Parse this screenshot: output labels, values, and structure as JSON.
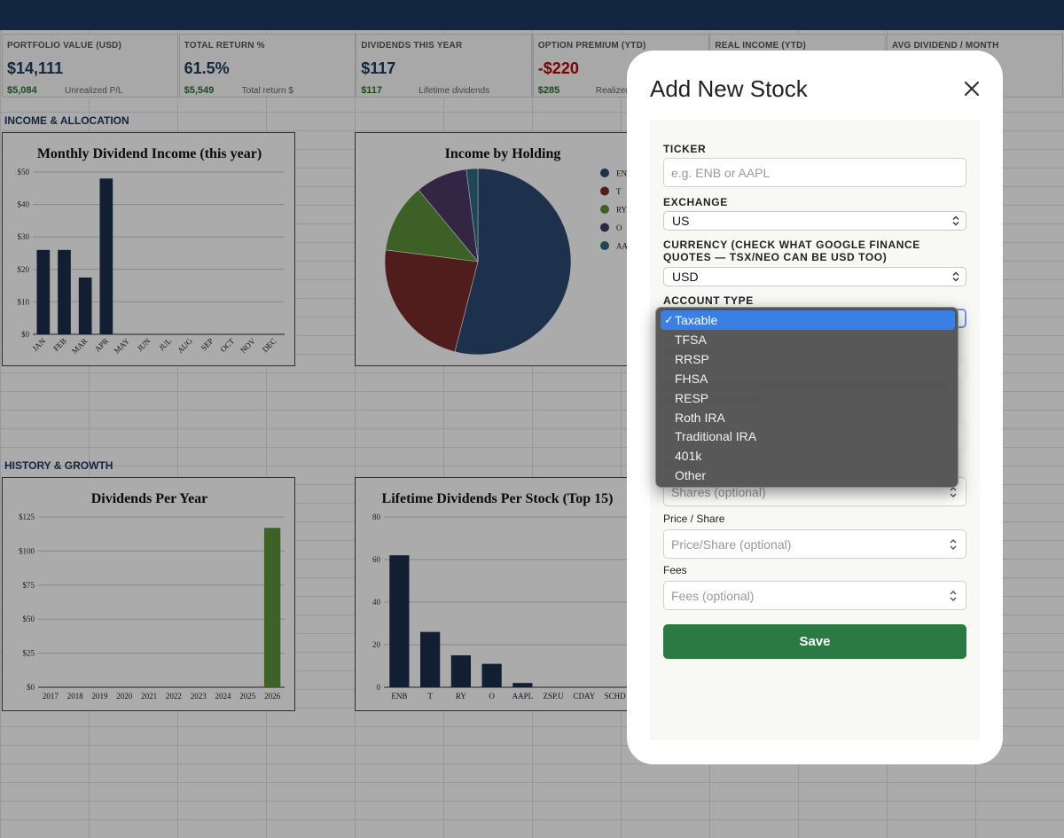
{
  "kpis": [
    {
      "label": "PORTFOLIO VALUE (USD)",
      "value": "$14,111",
      "sub": "$5,084",
      "subdesc": "Unrealized P/L",
      "negative": false
    },
    {
      "label": "TOTAL RETURN %",
      "value": "61.5%",
      "sub": "$5,549",
      "subdesc": "Total return $",
      "negative": false
    },
    {
      "label": "DIVIDENDS THIS YEAR",
      "value": "$117",
      "sub": "$117",
      "subdesc": "Lifetime dividends",
      "negative": false
    },
    {
      "label": "OPTION PREMIUM (YTD)",
      "value": "-$220",
      "sub": "$285",
      "subdesc": "Realized",
      "negative": true
    },
    {
      "label": "REAL INCOME (YTD)",
      "value": "",
      "sub": "",
      "subdesc": "",
      "negative": false
    },
    {
      "label": "AVG DIVIDEND / MONTH",
      "value": "",
      "sub": "",
      "subdesc": "",
      "negative": false
    }
  ],
  "sections": {
    "income": "INCOME & ALLOCATION",
    "history": "HISTORY & GROWTH"
  },
  "chart_data": [
    {
      "type": "bar",
      "title": "Monthly Dividend Income (this year)",
      "categories": [
        "JAN",
        "FEB",
        "MAR",
        "APR",
        "MAY",
        "JUN",
        "JUL",
        "AUG",
        "SEP",
        "OCT",
        "NOV",
        "DEC"
      ],
      "values": [
        26,
        26,
        17.5,
        48,
        0,
        0,
        0,
        0,
        0,
        0,
        0,
        0
      ],
      "ylim": [
        0,
        50
      ],
      "yticks": [
        "$0",
        "$10",
        "$20",
        "$30",
        "$40",
        "$50"
      ],
      "color": "#1c2e4a"
    },
    {
      "type": "pie",
      "title": "Income by Holding",
      "labels": [
        "ENB",
        "T",
        "RY",
        "O",
        "AAPL"
      ],
      "legend_labels": [
        "EN",
        "T",
        "RY",
        "O",
        "AA"
      ],
      "values": [
        54,
        23,
        12,
        9,
        2
      ],
      "colors": [
        "#2c4a74",
        "#7a2a2a",
        "#5a8f3a",
        "#4d3a66",
        "#2b6b80"
      ],
      "legend": "right"
    },
    {
      "type": "bar",
      "title": "Dividends Per Year",
      "categories": [
        "2017",
        "2018",
        "2019",
        "2020",
        "2021",
        "2022",
        "2023",
        "2024",
        "2025",
        "2026"
      ],
      "values": [
        0,
        0,
        0,
        0,
        0,
        0,
        0,
        0,
        0,
        117
      ],
      "ylim": [
        0,
        125
      ],
      "yticks": [
        "$0",
        "$25",
        "$50",
        "$75",
        "$100",
        "$125"
      ],
      "color": "#5c913b"
    },
    {
      "type": "bar",
      "title": "Lifetime Dividends Per Stock (Top 15)",
      "categories": [
        "ENB",
        "T",
        "RY",
        "O",
        "AAPL",
        "ZSP.U",
        "CDAY",
        "SCHD"
      ],
      "values": [
        62,
        26,
        15,
        11,
        2,
        0,
        0,
        0
      ],
      "ylim": [
        0,
        80
      ],
      "yticks": [
        "0",
        "20",
        "40",
        "60",
        "80"
      ],
      "color": "#1c2e4a"
    }
  ],
  "modal": {
    "title": "Add New Stock",
    "ticker_label": "TICKER",
    "ticker_placeholder": "e.g. ENB or AAPL",
    "exchange_label": "EXCHANGE",
    "exchange_value": "US",
    "currency_label": "CURRENCY (CHECK WHAT GOOGLE FINANCE QUOTES — TSX/NEO CAN BE USD TOO)",
    "currency_value": "USD",
    "account_label": "ACCOUNT TYPE",
    "price_label": "Price / Share",
    "price_placeholder": "Price/Share (optional)",
    "fees_label": "Fees",
    "fees_placeholder": "Fees (optional)",
    "shares_placeholder": "Shares (optional)",
    "save_label": "Save"
  },
  "account_options": {
    "selected": "Taxable",
    "items": [
      "Taxable",
      "TFSA",
      "RRSP",
      "FHSA",
      "RESP",
      "Roth IRA",
      "Traditional IRA",
      "401k",
      "Other"
    ]
  }
}
